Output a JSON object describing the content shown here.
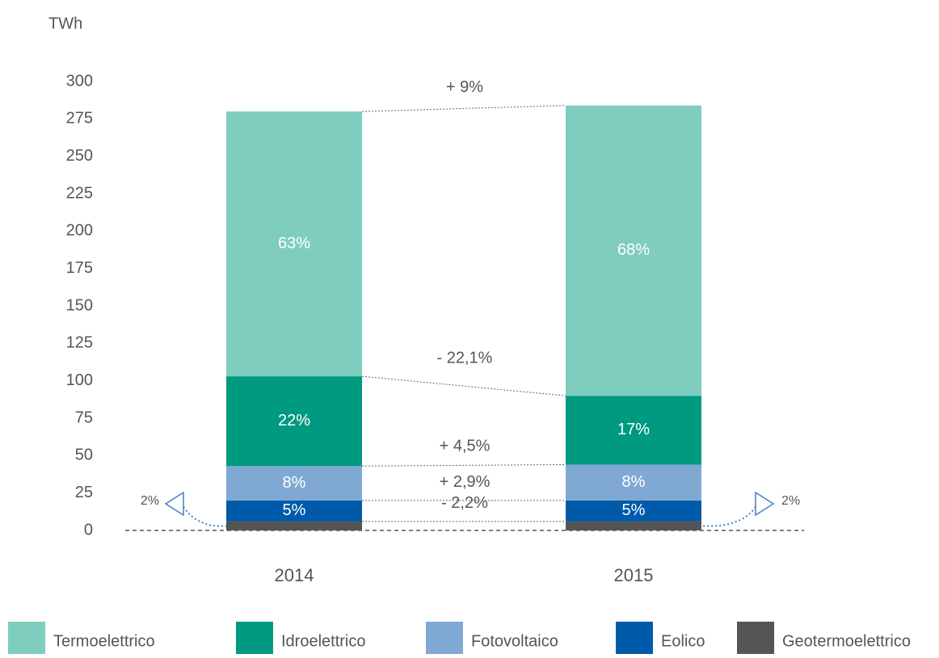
{
  "chart_data": {
    "type": "stacked_bar",
    "y_label": "TWh",
    "categories": [
      "2014",
      "2015"
    ],
    "ylim": [
      0,
      300
    ],
    "yticks": [
      0,
      25,
      50,
      75,
      100,
      125,
      150,
      175,
      200,
      225,
      250,
      275,
      300
    ],
    "series": [
      {
        "name": "Geotermoelettrico",
        "color": "#555555",
        "values": [
          6,
          6
        ],
        "share_labels": [
          "2%",
          "2%"
        ],
        "change_label": "- 2,2%"
      },
      {
        "name": "Eolico",
        "color": "#005aaa",
        "values": [
          14,
          14
        ],
        "share_labels": [
          "5%",
          "5%"
        ],
        "change_label": "+ 2,9%"
      },
      {
        "name": "Fotovoltaico",
        "color": "#7fa9d3",
        "values": [
          23,
          24
        ],
        "share_labels": [
          "8%",
          "8%"
        ],
        "change_label": "+ 4,5%"
      },
      {
        "name": "Idroelettrico",
        "color": "#009a80",
        "values": [
          60,
          46
        ],
        "share_labels": [
          "22%",
          "17%"
        ],
        "change_label": "- 22,1%"
      },
      {
        "name": "Termoelettrico",
        "color": "#7fcdbf",
        "values": [
          177,
          194
        ],
        "share_labels": [
          "63%",
          "68%"
        ],
        "change_label": "+ 9%"
      }
    ],
    "legend": "bottom"
  }
}
